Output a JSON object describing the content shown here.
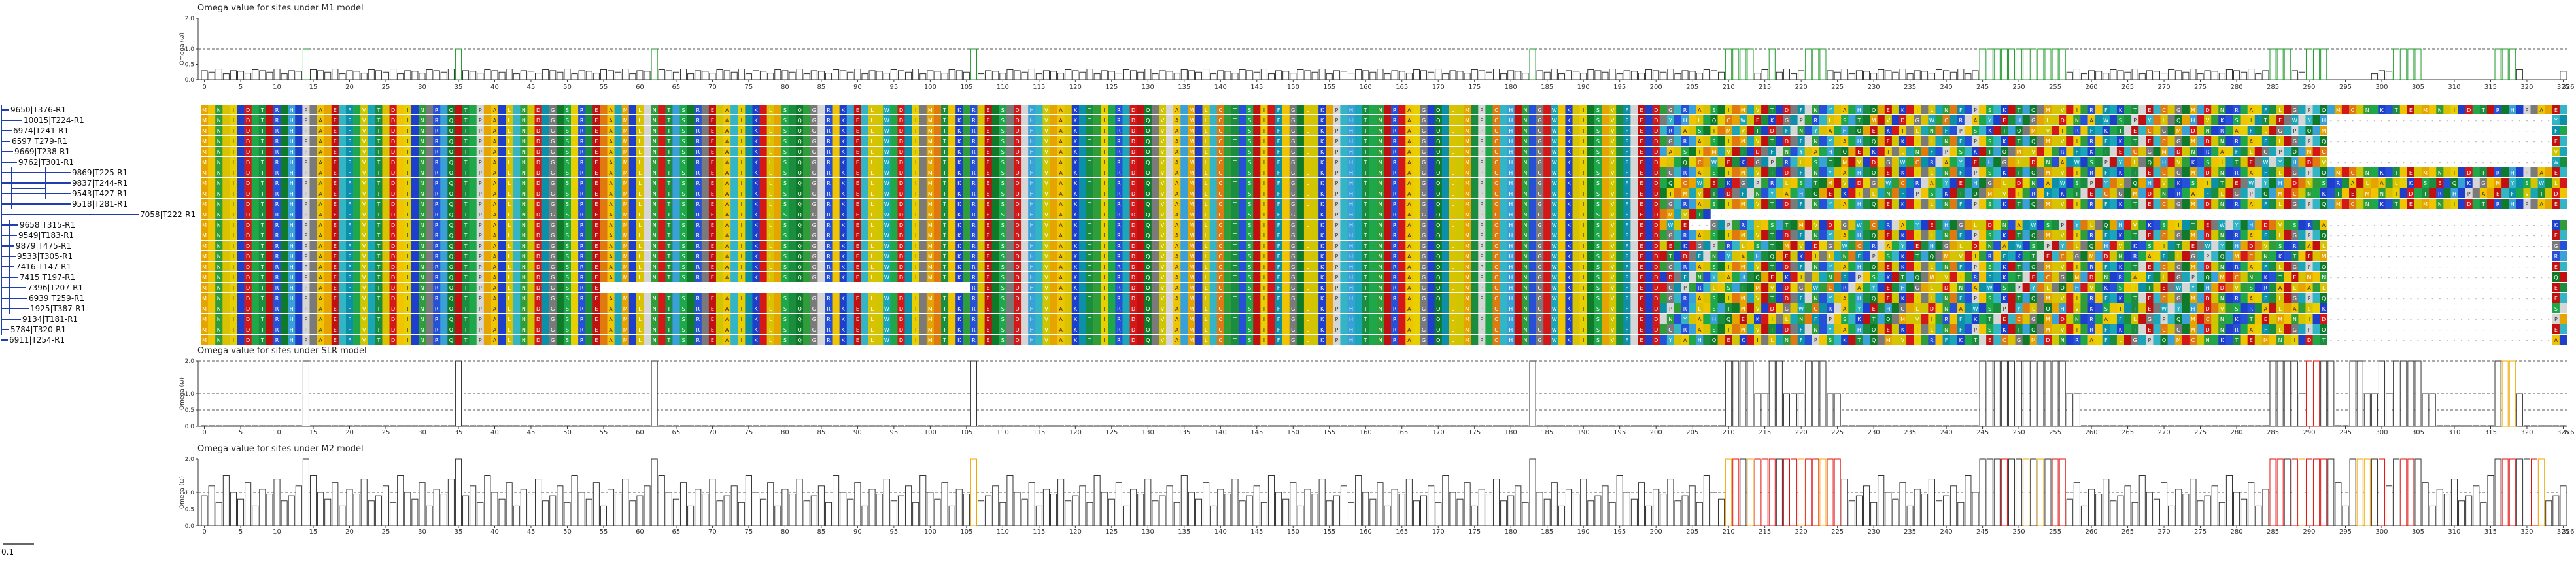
{
  "chart_data": [
    {
      "type": "bar",
      "title": "Omega value for sites under M1 model",
      "ylabel": "Omega (ω)",
      "ylim": [
        0,
        2.0
      ],
      "yticks": [
        0,
        0.5,
        1.0,
        2.0
      ],
      "ytick_labels": [
        "0.0",
        "0.5",
        "1.0",
        "2.0"
      ],
      "x_range": [
        0,
        326
      ],
      "xticks": [
        0,
        5,
        10,
        15,
        20,
        25,
        30,
        35,
        40,
        45,
        50,
        55,
        60,
        65,
        70,
        75,
        80,
        85,
        90,
        95,
        100,
        105,
        110,
        115,
        120,
        125,
        130,
        135,
        140,
        145,
        150,
        155,
        160,
        165,
        170,
        175,
        180,
        185,
        190,
        195,
        200,
        205,
        210,
        215,
        220,
        225,
        230,
        235,
        240,
        245,
        250,
        255,
        260,
        265,
        270,
        275,
        280,
        285,
        290,
        295,
        300,
        305,
        310,
        315,
        320,
        325
      ],
      "last_tick_label": "326",
      "dashed_levels": [
        1.0
      ],
      "site_count": 326,
      "base_values": [
        0.3,
        0.25,
        0.35,
        0.2,
        0.3,
        0.28,
        0.22,
        0.33
      ],
      "high_sites": [
        14,
        35,
        62,
        106,
        183,
        210,
        211,
        212,
        213,
        216,
        221,
        222,
        223,
        245,
        246,
        247,
        248,
        249,
        250,
        251,
        252,
        253,
        254,
        255,
        256,
        285,
        286,
        287,
        290,
        291,
        292,
        296,
        302,
        303,
        304,
        305,
        316,
        317,
        318
      ],
      "high_value": 1.0,
      "green_sites": [
        14,
        35,
        62,
        106,
        183,
        210,
        211,
        212,
        213,
        216,
        221,
        222,
        223,
        245,
        246,
        247,
        248,
        249,
        250,
        251,
        252,
        253,
        254,
        255,
        256,
        285,
        286,
        287,
        290,
        291,
        292,
        296,
        302,
        303,
        304,
        305,
        316,
        317,
        318
      ],
      "gap_ranges": [
        [
          293,
          298
        ],
        [
          306,
          315
        ],
        [
          320,
          324
        ]
      ]
    },
    {
      "type": "bar",
      "title": "Omega value for sites under SLR model",
      "ylabel": "Omega (ω)",
      "ylim": [
        0,
        2.0
      ],
      "yticks": [
        0,
        0.5,
        1.0,
        2.0
      ],
      "ytick_labels": [
        "0.0",
        "0.5",
        "1.0",
        "2.0"
      ],
      "x_range": [
        0,
        326
      ],
      "xticks": [
        0,
        5,
        10,
        15,
        20,
        25,
        30,
        35,
        40,
        45,
        50,
        55,
        60,
        65,
        70,
        75,
        80,
        85,
        90,
        95,
        100,
        105,
        110,
        115,
        120,
        125,
        130,
        135,
        140,
        145,
        150,
        155,
        160,
        165,
        170,
        175,
        180,
        185,
        190,
        195,
        200,
        205,
        210,
        215,
        220,
        225,
        230,
        235,
        240,
        245,
        250,
        255,
        260,
        265,
        270,
        275,
        280,
        285,
        290,
        295,
        300,
        305,
        310,
        315,
        320,
        325
      ],
      "last_tick_label": "326",
      "dashed_levels": [
        0.5,
        1.0,
        2.0
      ],
      "site_count": 326,
      "base_values": [
        0.02
      ],
      "high_sites": [
        14,
        35,
        62,
        106,
        183,
        210,
        211,
        212,
        213,
        216,
        217,
        221,
        222,
        223,
        245,
        246,
        247,
        248,
        249,
        250,
        251,
        252,
        253,
        254,
        255,
        256,
        285,
        286,
        287,
        288,
        290,
        291,
        292,
        293,
        296,
        297,
        300,
        302,
        303,
        304,
        305,
        316,
        317,
        318
      ],
      "high_value": 2.0,
      "mid_sites": [
        214,
        215,
        218,
        219,
        220,
        224,
        225,
        257,
        258,
        289,
        298,
        299,
        301,
        306,
        307,
        319
      ],
      "mid_value": 1.0,
      "red_sites": [
        290,
        291
      ],
      "yellow_sites": [
        317,
        318
      ]
    },
    {
      "type": "bar",
      "title": "Omega value for sites under M2 model",
      "ylabel": "Omega (ω)",
      "ylim": [
        0,
        2.0
      ],
      "yticks": [
        0,
        0.5,
        1.0,
        2.0
      ],
      "ytick_labels": [
        "0.0",
        "0.5",
        "1.0",
        "2.0"
      ],
      "x_range": [
        0,
        326
      ],
      "xticks": [
        0,
        5,
        10,
        15,
        20,
        25,
        30,
        35,
        40,
        45,
        50,
        55,
        60,
        65,
        70,
        75,
        80,
        85,
        90,
        95,
        100,
        105,
        110,
        115,
        120,
        125,
        130,
        135,
        140,
        145,
        150,
        155,
        160,
        165,
        170,
        175,
        180,
        185,
        190,
        195,
        200,
        205,
        210,
        215,
        220,
        225,
        230,
        235,
        240,
        245,
        250,
        255,
        260,
        265,
        270,
        275,
        280,
        285,
        290,
        295,
        300,
        305,
        310,
        315,
        320,
        325
      ],
      "last_tick_label": "326",
      "dashed_levels": [
        1.0
      ],
      "site_count": 326,
      "base_values": [
        0.9,
        1.2,
        0.7,
        1.5,
        1.0,
        0.8,
        1.3,
        0.6,
        1.1,
        0.95,
        1.4,
        0.75
      ],
      "high_sites": [
        14,
        35,
        62,
        106,
        183,
        210,
        211,
        212,
        213,
        214,
        215,
        216,
        217,
        218,
        219,
        220,
        221,
        222,
        223,
        224,
        225,
        245,
        246,
        247,
        248,
        249,
        250,
        251,
        252,
        253,
        254,
        255,
        256,
        285,
        286,
        287,
        288,
        289,
        290,
        291,
        292,
        293,
        296,
        297,
        298,
        299,
        300,
        302,
        303,
        304,
        305,
        316,
        317,
        318,
        319,
        320,
        321,
        322
      ],
      "high_value": 2.0,
      "red_sites": [
        211,
        214,
        215,
        216,
        218,
        219,
        221,
        222,
        224,
        225,
        248,
        255,
        256,
        285,
        286,
        288,
        290,
        291,
        292,
        300,
        303,
        304,
        317,
        318,
        321
      ],
      "yellow_sites": [
        106,
        210,
        213,
        220,
        223,
        251,
        253,
        289,
        297,
        298,
        322
      ]
    }
  ],
  "tree": {
    "leaves": [
      "9650|T376-R1",
      "10015|T224-R1",
      "6974|T241-R1",
      "6597|T279-R1",
      "9669|T238-R1",
      "9762|T301-R1",
      "9869|T225-R1",
      "9837|T244-R1",
      "9543|T427-R1",
      "9518|T281-R1",
      "7058|T222-R1",
      "9658|T315-R1",
      "9549|T183-R1",
      "9879|T475-R1",
      "9533|T305-R1",
      "7416|T147-R1",
      "7415|T197-R1",
      "7396|T207-R1",
      "6939|T259-R1",
      "1925|T387-R1",
      "9134|T181-R1",
      "5784|T320-R1",
      "6911|T254-R1"
    ],
    "scale_label": "0.1",
    "branch_color": "#1f3fb0"
  },
  "alignment": {
    "rows": 23,
    "columns": 326,
    "palette": {
      "M": "#e6a400",
      "A": "#f0c400",
      "I": "#e8d000",
      "L": "#d9c200",
      "V": "#cfc500",
      "S": "#1fa84a",
      "T": "#1b8d3f",
      "N": "#2f9e3a",
      "Q": "#0f7a2a",
      "D": "#d41818",
      "E": "#c01010",
      "K": "#1d3fcc",
      "R": "#2650d8",
      "H": "#3aa0d8",
      "F": "#0c8fa8",
      "W": "#1aa6b8",
      "Y": "#33b5c6",
      "C": "#e07a10",
      "G": "#7a7a7a",
      "P": "#d6d6d6",
      "-": "#ffffff"
    },
    "sequence": "MANLIKDSTERQHKPGAMEYFSVWTLDAIKNGRHQETSPMAKLYNVDFGQSIRTECAWMKLPNDTHSQRGEVAYIFKDLMSTQNGPRAKHEYLVWSDFIGMCTAKNRLEQSGDPHYVMALKFTNISRWDEQGVPAHMKLYCNTRSEIDFAGQLVKMPYHWTSNERDAIGKQFLVMTPSCYHENRGDWAKLIQSMVTFPEKDNGYRHALSQICMWVETKDGFPNRYLASHTQMEVKDIGLWNCFRPASYKETHQGMLVDINRAFWKSTPEYCLGQMHDVNKRSAIFTLEGWPYQHMDCVNSKRTAEL",
    "gap_patterns": [
      {
        "row": 10,
        "start": 208,
        "end": 326,
        "style": "short"
      },
      {
        "row": 17,
        "start": 55,
        "end": 105,
        "style": "gap"
      },
      {
        "row": 11,
        "start": 205,
        "end": 207,
        "style": "gap"
      }
    ]
  }
}
